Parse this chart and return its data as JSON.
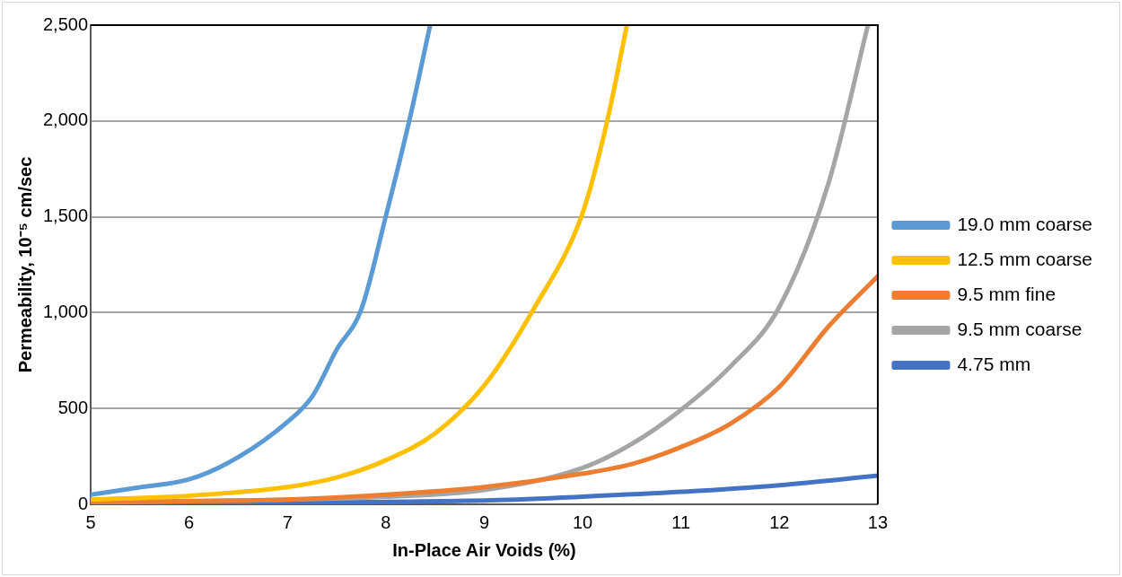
{
  "chart_data": {
    "type": "line",
    "xlabel": "In-Place Air Voids (%)",
    "ylabel": "Permeability, 10⁻⁵ cm/sec",
    "xlim": [
      5,
      13
    ],
    "xticks": [
      5,
      6,
      7,
      8,
      9,
      10,
      11,
      12,
      13
    ],
    "ylim": [
      0,
      2500
    ],
    "yticks": [
      0,
      500,
      {
        "value": 1000,
        "label": "1,000"
      },
      {
        "value": 1500,
        "label": "1,500"
      },
      {
        "value": 2000,
        "label": "2,000"
      },
      {
        "value": 2500,
        "label": "2,500"
      }
    ],
    "grid": "y",
    "legend": "right",
    "marker": "none",
    "line_style": "solid",
    "series": [
      {
        "name": "19.0 mm coarse",
        "color": "#5b9bd5",
        "x": [
          5,
          5.5,
          6,
          6.5,
          7,
          7.25,
          7.5,
          7.75,
          8,
          8.25,
          8.45
        ],
        "values": [
          50,
          89,
          130,
          246,
          430,
          561,
          807,
          1017,
          1504,
          2028,
          2500
        ]
      },
      {
        "name": "12.5 mm coarse",
        "color": "#ffc000",
        "x": [
          5,
          6,
          7,
          7.5,
          8,
          8.5,
          9,
          9.5,
          10,
          10.25,
          10.45
        ],
        "values": [
          25,
          45,
          90,
          140,
          230,
          370,
          620,
          1017,
          1520,
          2000,
          2500
        ]
      },
      {
        "name": "9.5 mm fine",
        "color": "#ed7d31",
        "x": [
          5,
          7,
          8,
          9,
          10,
          10.5,
          11,
          11.5,
          12,
          12.5,
          13
        ],
        "values": [
          10,
          25,
          50,
          90,
          160,
          210,
          299,
          420,
          613,
          928,
          1190
        ]
      },
      {
        "name": "9.5 mm coarse",
        "color": "#a5a5a5",
        "x": [
          5,
          8,
          9,
          10,
          10.5,
          11,
          11.5,
          12,
          12.5,
          12.9
        ],
        "values": [
          10,
          40,
          75,
          190,
          315,
          493,
          718,
          1030,
          1677,
          2500
        ]
      },
      {
        "name": "4.75 mm",
        "color": "#4472c4",
        "x": [
          5,
          9,
          10,
          11,
          12,
          13
        ],
        "values": [
          5,
          20,
          40,
          65,
          100,
          150
        ]
      }
    ]
  }
}
